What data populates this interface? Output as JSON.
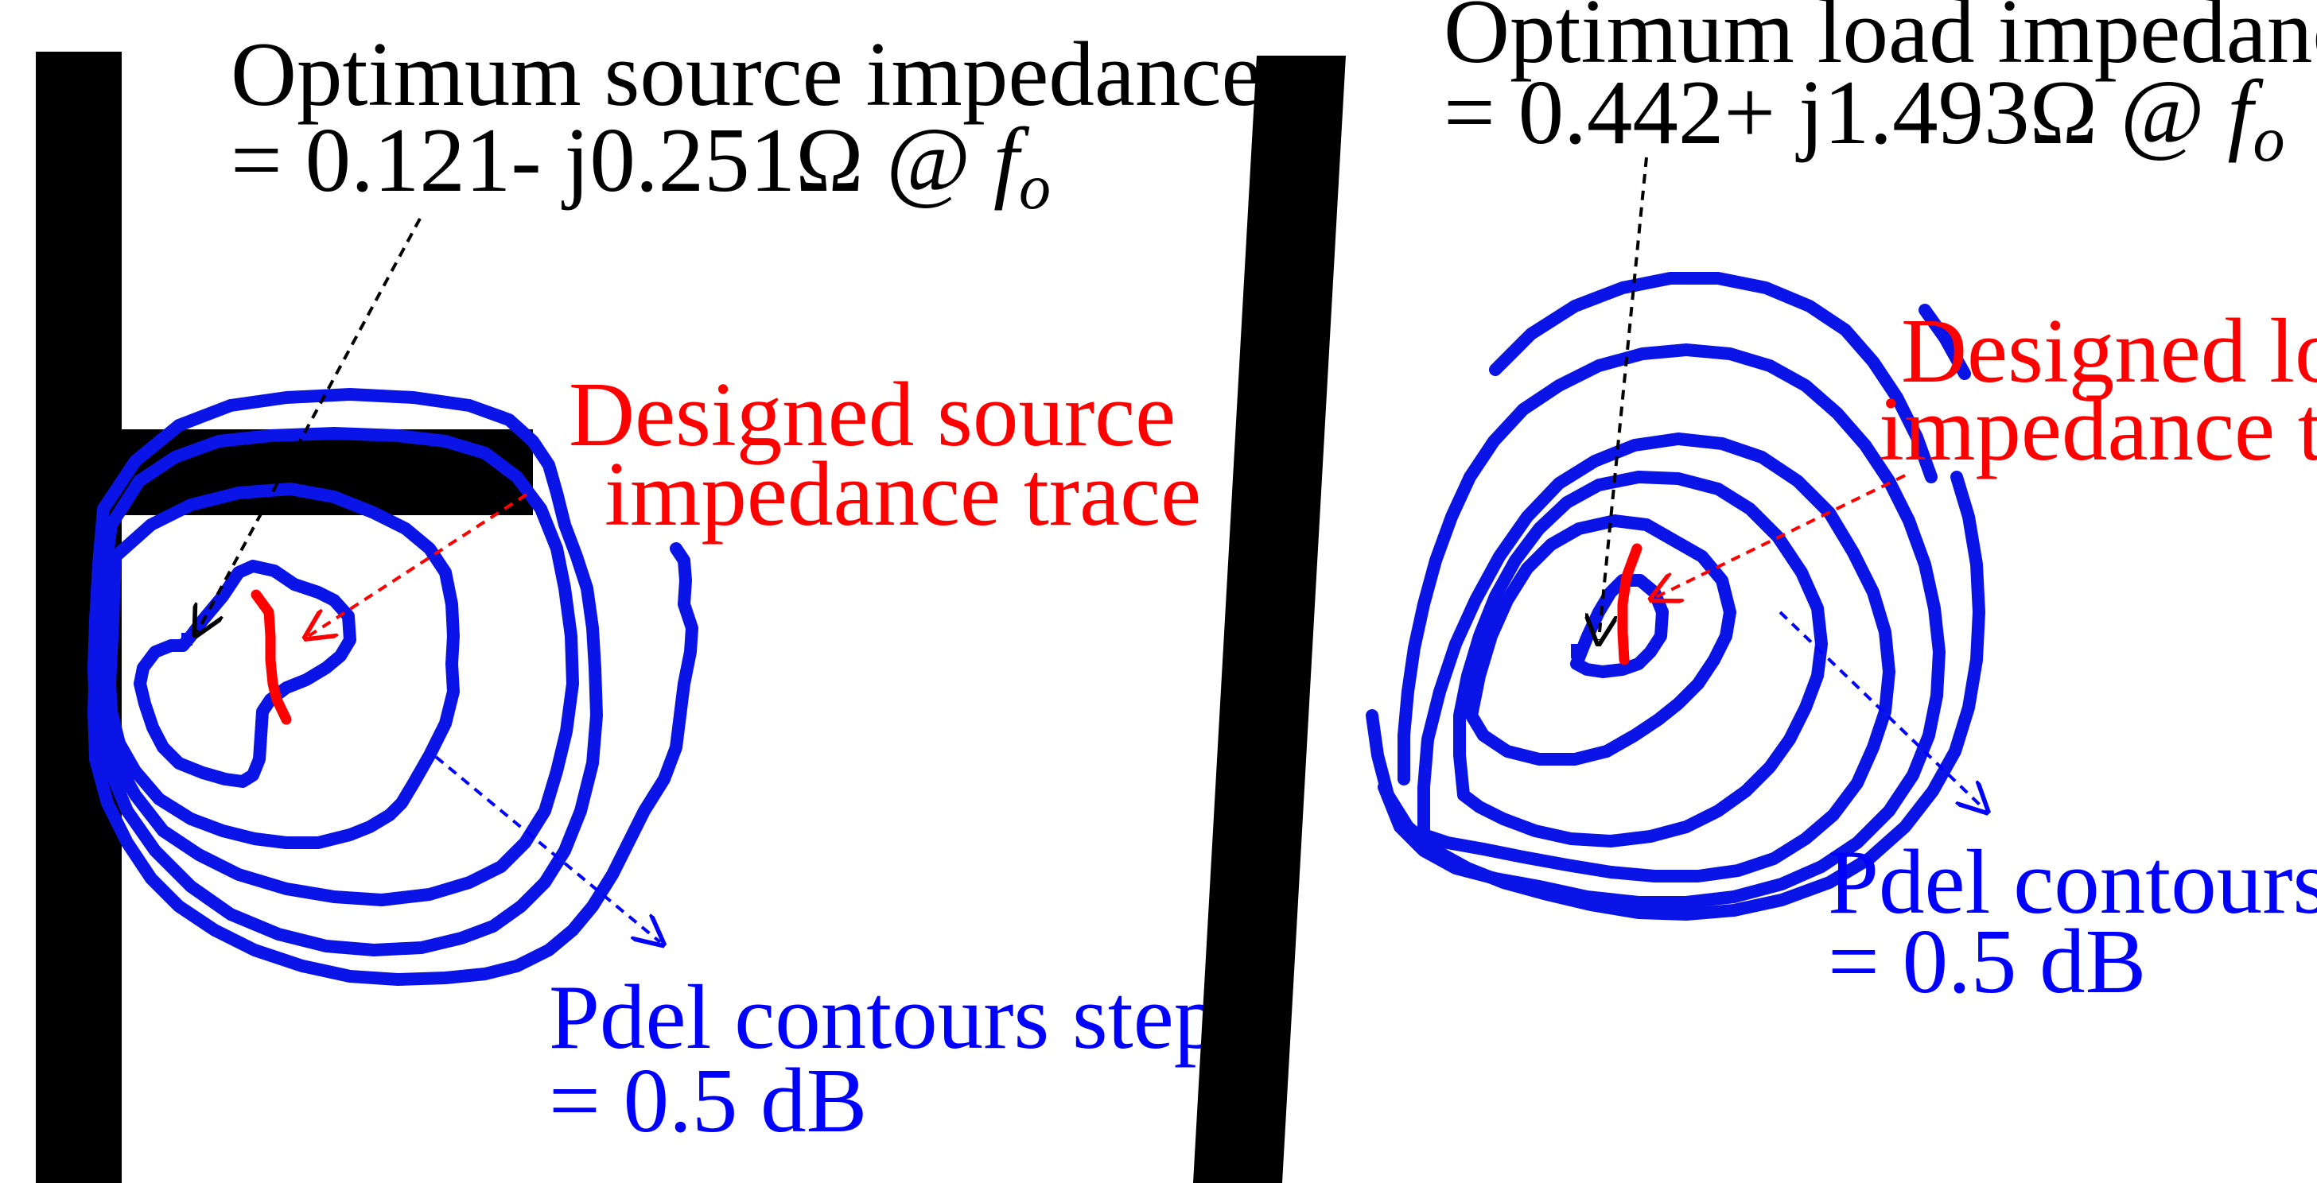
{
  "left_panel": {
    "optimum_label_line1": "Optimum source impedance",
    "optimum_label_line2": "= 0.121- j0.251Ω  @ ",
    "freq_symbol": "f",
    "freq_subscript": "o",
    "designed_label_line1": "Designed source",
    "designed_label_line2": "impedance trace",
    "contour_label_line1": "Pdel contours step",
    "contour_label_line2": "= 0.5 dB"
  },
  "right_panel": {
    "optimum_label_line1": "Optimum load impedance",
    "optimum_label_line2": "= 0.442+ j1.493Ω  @ ",
    "freq_symbol": "f",
    "freq_subscript": "o",
    "designed_label_line1": "Designed load",
    "designed_label_line2": "impedance trace",
    "contour_label_line1": "Pdel contours step",
    "contour_label_line2": "= 0.5 dB"
  },
  "colors": {
    "contour": "#0a14e6",
    "designed_trace": "#ff0000",
    "optimum_arrow": "#000000",
    "background_shape": "#000000"
  }
}
